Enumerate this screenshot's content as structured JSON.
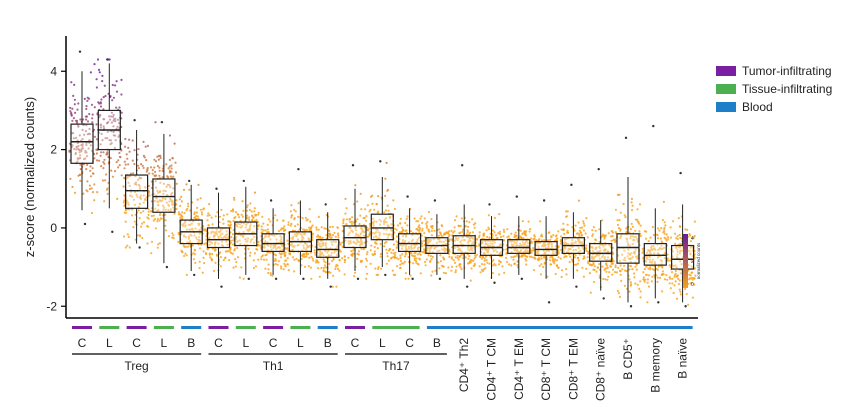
{
  "chart_data": {
    "type": "box",
    "ylabel": "z-score (normalized counts)",
    "ylim": [
      -2.3,
      4.9
    ],
    "yticks": [
      -2,
      0,
      2,
      4
    ],
    "legend": {
      "placement": "top-right",
      "items": [
        {
          "label": "Tumor-infiltrating",
          "color": "#7B1FA2"
        },
        {
          "label": "Tissue-infiltrating",
          "color": "#4CAF50"
        },
        {
          "label": "Blood",
          "color": "#1E7FC8"
        }
      ]
    },
    "colorbar": {
      "label": "normalized counts",
      "ticks": [
        "4",
        "2",
        "0"
      ],
      "low_color": "#F7A21B",
      "high_color": "#6A1B9A"
    },
    "categories": [
      {
        "label": "C",
        "tissue": "Tumor-infiltrating",
        "q1": 1.65,
        "median": 2.2,
        "q3": 2.65,
        "whisker_low": 0.45,
        "whisker_high": 4.0,
        "min": 0.1,
        "max": 4.5
      },
      {
        "label": "L",
        "tissue": "Tissue-infiltrating",
        "q1": 2.0,
        "median": 2.5,
        "q3": 3.0,
        "whisker_low": 0.5,
        "whisker_high": 4.2,
        "min": -0.1,
        "max": 4.3
      },
      {
        "label": "C",
        "tissue": "Tumor-infiltrating",
        "q1": 0.5,
        "median": 0.95,
        "q3": 1.35,
        "whisker_low": -0.4,
        "whisker_high": 2.5,
        "min": -0.5,
        "max": 2.75
      },
      {
        "label": "L",
        "tissue": "Tissue-infiltrating",
        "q1": 0.4,
        "median": 0.8,
        "q3": 1.25,
        "whisker_low": -0.9,
        "whisker_high": 2.4,
        "min": -1.0,
        "max": 2.7
      },
      {
        "label": "B",
        "tissue": "Blood",
        "q1": -0.4,
        "median": -0.1,
        "q3": 0.2,
        "whisker_low": -1.1,
        "whisker_high": 1.1,
        "min": -1.2,
        "max": 1.2
      },
      {
        "label": "C",
        "tissue": "Tumor-infiltrating",
        "q1": -0.5,
        "median": -0.3,
        "q3": 0.0,
        "whisker_low": -1.3,
        "whisker_high": 0.9,
        "min": -1.5,
        "max": 1.0
      },
      {
        "label": "L",
        "tissue": "Tissue-infiltrating",
        "q1": -0.45,
        "median": -0.15,
        "q3": 0.15,
        "whisker_low": -1.2,
        "whisker_high": 1.05,
        "min": -1.3,
        "max": 1.2
      },
      {
        "label": "C",
        "tissue": "Tumor-infiltrating",
        "q1": -0.6,
        "median": -0.4,
        "q3": -0.15,
        "whisker_low": -1.2,
        "whisker_high": 0.5,
        "min": -1.3,
        "max": 0.7
      },
      {
        "label": "L",
        "tissue": "Tissue-infiltrating",
        "q1": -0.6,
        "median": -0.35,
        "q3": -0.1,
        "whisker_low": -1.2,
        "whisker_high": 0.7,
        "min": -1.3,
        "max": 1.5
      },
      {
        "label": "B",
        "tissue": "Blood",
        "q1": -0.75,
        "median": -0.55,
        "q3": -0.3,
        "whisker_low": -1.3,
        "whisker_high": 0.4,
        "min": -1.5,
        "max": 0.6
      },
      {
        "label": "C",
        "tissue": "Tumor-infiltrating",
        "q1": -0.5,
        "median": -0.25,
        "q3": 0.05,
        "whisker_low": -1.1,
        "whisker_high": 1.0,
        "min": -1.3,
        "max": 1.6
      },
      {
        "label": "L",
        "tissue": "Tissue-infiltrating",
        "q1": -0.3,
        "median": 0.0,
        "q3": 0.35,
        "whisker_low": -1.0,
        "whisker_high": 1.3,
        "min": -1.2,
        "max": 1.7
      },
      {
        "label": "C",
        "tissue": "Tissue-infiltrating",
        "q1": -0.6,
        "median": -0.4,
        "q3": -0.15,
        "whisker_low": -1.2,
        "whisker_high": 0.5,
        "min": -1.3,
        "max": 0.8
      },
      {
        "label": "B",
        "tissue": "Blood",
        "q1": -0.65,
        "median": -0.45,
        "q3": -0.25,
        "whisker_low": -1.2,
        "whisker_high": 0.35,
        "min": -1.3,
        "max": 0.7
      },
      {
        "label": "CD4⁺ Th2",
        "tissue": "Blood",
        "q1": -0.65,
        "median": -0.45,
        "q3": -0.2,
        "whisker_low": -1.3,
        "whisker_high": 0.6,
        "min": -1.5,
        "max": 1.6
      },
      {
        "label": "CD4⁺ T CM",
        "tissue": "Blood",
        "q1": -0.7,
        "median": -0.5,
        "q3": -0.3,
        "whisker_low": -1.3,
        "whisker_high": 0.3,
        "min": -1.4,
        "max": 0.6
      },
      {
        "label": "CD4⁺ T EM",
        "tissue": "Blood",
        "q1": -0.65,
        "median": -0.5,
        "q3": -0.3,
        "whisker_low": -1.2,
        "whisker_high": 0.3,
        "min": -1.3,
        "max": 0.8
      },
      {
        "label": "CD8⁺ T CM",
        "tissue": "Blood",
        "q1": -0.7,
        "median": -0.55,
        "q3": -0.35,
        "whisker_low": -1.3,
        "whisker_high": 0.3,
        "min": -1.9,
        "max": 0.7
      },
      {
        "label": "CD8⁺ T EM",
        "tissue": "Blood",
        "q1": -0.65,
        "median": -0.45,
        "q3": -0.25,
        "whisker_low": -1.3,
        "whisker_high": 0.4,
        "min": -1.5,
        "max": 1.1
      },
      {
        "label": "CD8⁺ naïve",
        "tissue": "Blood",
        "q1": -0.85,
        "median": -0.65,
        "q3": -0.4,
        "whisker_low": -1.6,
        "whisker_high": 0.2,
        "min": -1.8,
        "max": 1.5
      },
      {
        "label": "B CD5⁺",
        "tissue": "Blood",
        "q1": -0.9,
        "median": -0.5,
        "q3": -0.15,
        "whisker_low": -1.9,
        "whisker_high": 1.3,
        "min": -2.0,
        "max": 2.3
      },
      {
        "label": "B memory",
        "tissue": "Blood",
        "q1": -0.95,
        "median": -0.7,
        "q3": -0.4,
        "whisker_low": -1.8,
        "whisker_high": 0.5,
        "min": -1.9,
        "max": 2.6
      },
      {
        "label": "B naïve",
        "tissue": "Blood",
        "q1": -1.05,
        "median": -0.8,
        "q3": -0.45,
        "whisker_low": -1.9,
        "whisker_high": 0.6,
        "min": -2.0,
        "max": 1.4
      }
    ],
    "groups": [
      {
        "label": "Treg",
        "members": [
          0,
          4
        ]
      },
      {
        "label": "Th1",
        "members": [
          5,
          9
        ]
      },
      {
        "label": "Th17",
        "members": [
          10,
          13
        ]
      }
    ]
  }
}
